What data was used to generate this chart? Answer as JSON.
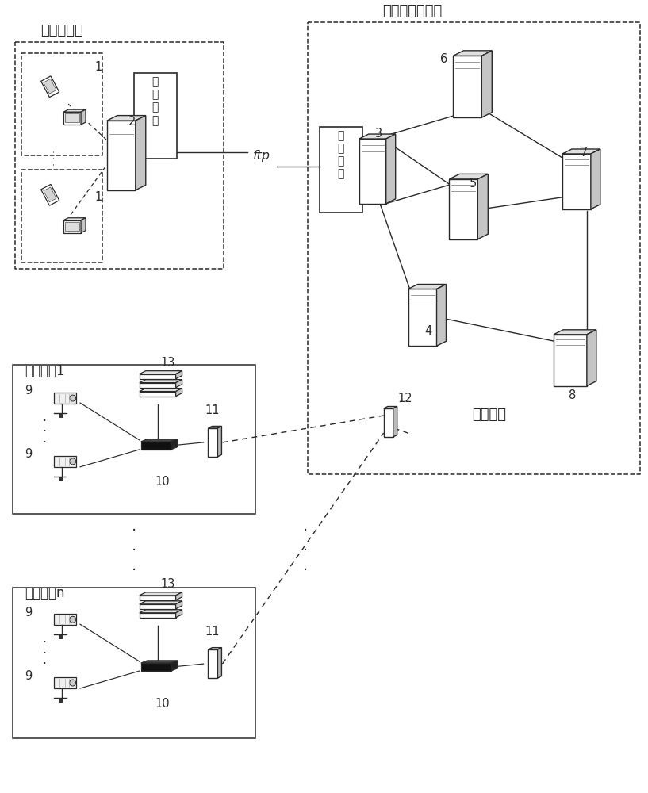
{
  "bg_color": "#ffffff",
  "lc": "#2a2a2a",
  "labels": {
    "info_collect": "信息搜集端",
    "face_recog": "人脸识别服务端",
    "monitor1": "监控区域1",
    "monitorn": "监控区域n",
    "mgmt_center": "管理中心",
    "gw_text": "图\n库\n网\n关",
    "ftp": "ftp"
  },
  "nums": [
    "1",
    "2",
    "3",
    "4",
    "5",
    "6",
    "7",
    "8",
    "9",
    "10",
    "11",
    "12",
    "13"
  ]
}
